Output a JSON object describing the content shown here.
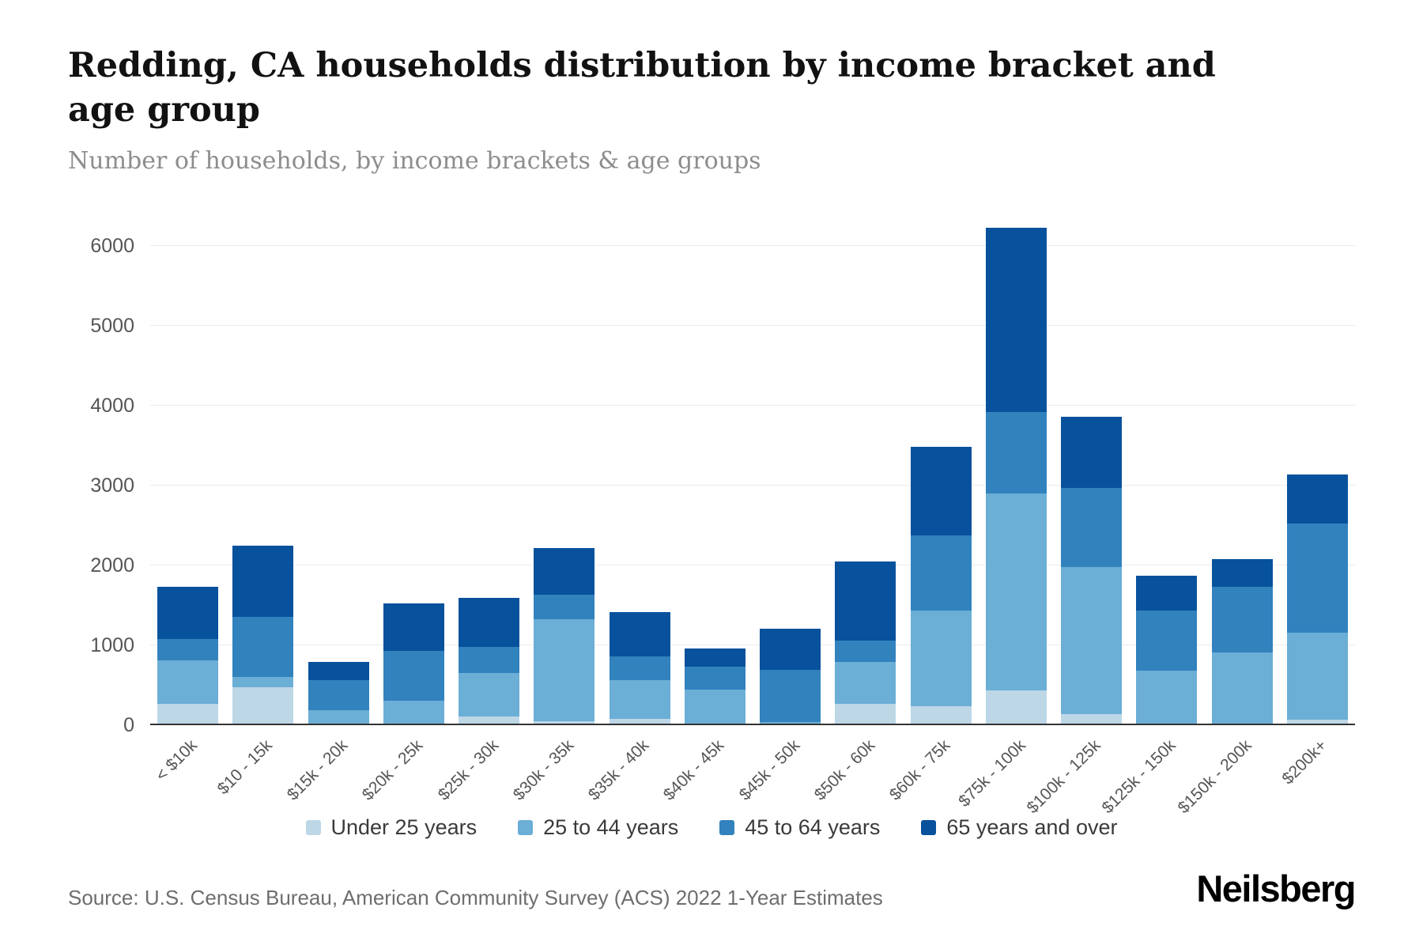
{
  "page": {
    "title": "Redding, CA households distribution by income bracket and age group",
    "subtitle": "Number of households, by income brackets & age groups",
    "source": "Source: U.S. Census Bureau, American Community Survey (ACS) 2022 1-Year Estimates",
    "brand": "Neilsberg"
  },
  "chart_data": {
    "type": "bar",
    "stacked": true,
    "title": "Redding, CA households distribution by income bracket and age group",
    "subtitle": "Number of households, by income brackets & age groups",
    "xlabel": "",
    "ylabel": "Number of households",
    "grid": "horizontal",
    "legend_position": "bottom",
    "yticks": [
      0,
      1000,
      2000,
      3000,
      4000,
      5000,
      6000
    ],
    "ylim": [
      0,
      6435
    ],
    "categories": [
      "< $10k",
      "$10 - 15k",
      "$15k - 20k",
      "$20k - 25k",
      "$25k - 30k",
      "$30k - 35k",
      "$35k - 40k",
      "$40k - 45k",
      "$45k - 50k",
      "$50k - 60k",
      "$60k - 75k",
      "$75k - 100k",
      "$100k - 125k",
      "$125k - 150k",
      "$150k - 200k",
      "$200k+"
    ],
    "series": [
      {
        "name": "Under 25 years",
        "color": "#bdd7e7",
        "values": [
          270,
          470,
          10,
          20,
          110,
          50,
          80,
          10,
          10,
          270,
          240,
          430,
          140,
          10,
          10,
          70
        ]
      },
      {
        "name": "25 to 44 years",
        "color": "#6baed6",
        "values": [
          540,
          130,
          180,
          280,
          540,
          1270,
          480,
          430,
          30,
          520,
          1190,
          2470,
          1840,
          670,
          900,
          1090
        ]
      },
      {
        "name": "45 to 64 years",
        "color": "#3182bd",
        "values": [
          270,
          750,
          370,
          630,
          330,
          310,
          300,
          290,
          650,
          270,
          940,
          1020,
          990,
          750,
          820,
          1360
        ]
      },
      {
        "name": "65 years and over",
        "color": "#08519c",
        "values": [
          650,
          900,
          230,
          590,
          610,
          590,
          550,
          230,
          520,
          990,
          1110,
          2310,
          890,
          440,
          350,
          620
        ]
      }
    ],
    "totals": [
      1730,
      2250,
      790,
      1520,
      1590,
      2220,
      1410,
      960,
      1210,
      2050,
      3480,
      6230,
      3860,
      1870,
      2080,
      3140
    ]
  }
}
